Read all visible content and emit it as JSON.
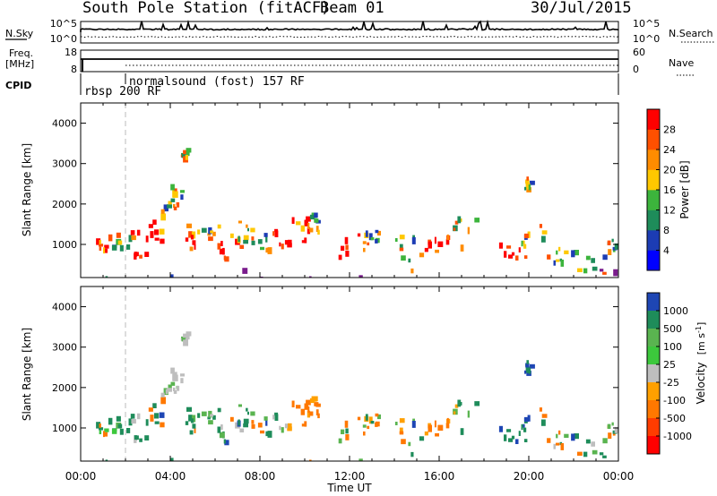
{
  "header": {
    "station": "South Pole Station (fitACF)",
    "beam": "Beam 01",
    "date": "30/Jul/2015"
  },
  "top_panels": {
    "nsky": {
      "label": "N.Sky",
      "ticks": [
        "10^5",
        "10^0"
      ],
      "right_label": "N.Search",
      "right_ticks": [
        "10^5",
        "10^0"
      ]
    },
    "freq": {
      "label_line1": "Freq.",
      "label_line2": "[MHz]",
      "ticks": [
        "18",
        "8"
      ],
      "right_label": "Nave",
      "right_ticks": [
        "60",
        "0"
      ]
    },
    "cpid": {
      "label": "CPID",
      "modes": [
        {
          "name": "rbsp 200 RF",
          "start_hour": 0
        },
        {
          "name": "normalsound (fost) 157 RF",
          "start_hour": 2
        }
      ]
    }
  },
  "chart_data": [
    {
      "type": "heatmap",
      "title": "Power",
      "ylabel": "Slant Range [km]",
      "xlabel": "",
      "xlim_hours": [
        0,
        24
      ],
      "ylim": [
        180,
        4500
      ],
      "yticks": [
        "1000",
        "2000",
        "3000",
        "4000"
      ],
      "colorbar": {
        "label": "Power [dB]",
        "ticks": [
          "4",
          "8",
          "12",
          "16",
          "20",
          "24",
          "28"
        ],
        "colors": [
          "#0000ff",
          "#1c3cb4",
          "#1e8c5a",
          "#3cb43c",
          "#ffc800",
          "#ff8c00",
          "#ff5000",
          "#ff0000"
        ]
      }
    },
    {
      "type": "heatmap",
      "title": "Velocity",
      "ylabel": "Slant Range [km]",
      "xlabel": "Time UT",
      "xlim_hours": [
        0,
        24
      ],
      "ylim": [
        180,
        4500
      ],
      "yticks": [
        "1000",
        "2000",
        "3000",
        "4000"
      ],
      "xticks": [
        "00:00",
        "04:00",
        "08:00",
        "12:00",
        "16:00",
        "20:00",
        "00:00"
      ],
      "colorbar": {
        "label": "Velocity [m s-1]",
        "ticks": [
          "1000",
          "500",
          "100",
          "25",
          "-25",
          "-100",
          "-500",
          "-1000"
        ],
        "colors": [
          "#1e46b4",
          "#1e8c5a",
          "#5ab450",
          "#3cc83c",
          "#bebebe",
          "#ffa000",
          "#ff7800",
          "#ff3c00",
          "#ff0000"
        ]
      }
    }
  ]
}
